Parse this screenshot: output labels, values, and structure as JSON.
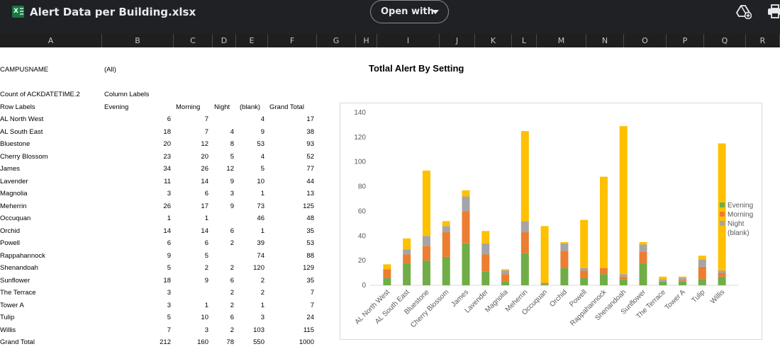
{
  "app": {
    "file_name": "Alert Data per Building.xlsx",
    "open_with_label": "Open with",
    "icons": [
      "spreadsheet-file-icon",
      "chevron-down-icon",
      "add-to-drive-icon",
      "print-icon"
    ]
  },
  "columns": [
    "A",
    "B",
    "C",
    "D",
    "E",
    "F",
    "G",
    "H",
    "I",
    "J",
    "K",
    "L",
    "M",
    "N",
    "O",
    "P",
    "Q",
    "R"
  ],
  "pivot": {
    "filter_label": "CAMPUSNAME",
    "filter_value": "(All)",
    "measure_label": "Count of ACKDATETIME.2",
    "column_labels": "Column Labels",
    "row_labels": "Row Labels",
    "headers": [
      "Evening",
      "Morning",
      "Night",
      "(blank)",
      "Grand Total"
    ],
    "rows": [
      {
        "name": "AL North West",
        "vals": [
          "6",
          "7",
          "",
          "4",
          "17"
        ]
      },
      {
        "name": "AL South East",
        "vals": [
          "18",
          "7",
          "4",
          "9",
          "38"
        ]
      },
      {
        "name": "Bluestone",
        "vals": [
          "20",
          "12",
          "8",
          "53",
          "93"
        ]
      },
      {
        "name": "Cherry Blossom",
        "vals": [
          "23",
          "20",
          "5",
          "4",
          "52"
        ]
      },
      {
        "name": "James",
        "vals": [
          "34",
          "26",
          "12",
          "5",
          "77"
        ]
      },
      {
        "name": "Lavender",
        "vals": [
          "11",
          "14",
          "9",
          "10",
          "44"
        ]
      },
      {
        "name": "Magnolia",
        "vals": [
          "3",
          "6",
          "3",
          "1",
          "13"
        ]
      },
      {
        "name": "Meherrin",
        "vals": [
          "26",
          "17",
          "9",
          "73",
          "125"
        ]
      },
      {
        "name": "Occuquan",
        "vals": [
          "1",
          "1",
          "",
          "46",
          "48"
        ]
      },
      {
        "name": "Orchid",
        "vals": [
          "14",
          "14",
          "6",
          "1",
          "35"
        ]
      },
      {
        "name": "Powell",
        "vals": [
          "6",
          "6",
          "2",
          "39",
          "53"
        ]
      },
      {
        "name": "Rappahannock",
        "vals": [
          "9",
          "5",
          "",
          "74",
          "88"
        ]
      },
      {
        "name": "Shenandoah",
        "vals": [
          "5",
          "2",
          "2",
          "120",
          "129"
        ]
      },
      {
        "name": "Sunflower",
        "vals": [
          "18",
          "9",
          "6",
          "2",
          "35"
        ]
      },
      {
        "name": "The Terrace",
        "vals": [
          "3",
          "",
          "2",
          "2",
          "7"
        ]
      },
      {
        "name": "Tower A",
        "vals": [
          "3",
          "1",
          "2",
          "1",
          "7"
        ]
      },
      {
        "name": "Tulip",
        "vals": [
          "5",
          "10",
          "6",
          "3",
          "24"
        ]
      },
      {
        "name": "Willis",
        "vals": [
          "7",
          "3",
          "2",
          "103",
          "115"
        ]
      },
      {
        "name": "Grand Total",
        "vals": [
          "212",
          "160",
          "78",
          "550",
          "1000"
        ]
      }
    ]
  },
  "chart_data": {
    "type": "bar",
    "stacked": true,
    "title": "Totlal Alert By Setting",
    "categories": [
      "AL North West",
      "AL South East",
      "Bluestone",
      "Cherry Blossom",
      "James",
      "Lavender",
      "Magnolia",
      "Meherrin",
      "Occuquan",
      "Orchid",
      "Powell",
      "Rappahannock",
      "Shenandoah",
      "Sunflower",
      "The Terrace",
      "Tower A",
      "Tulip",
      "Willis"
    ],
    "series": [
      {
        "name": "Evening",
        "color": "#70ad47",
        "values": [
          6,
          18,
          20,
          23,
          34,
          11,
          3,
          26,
          1,
          14,
          6,
          9,
          5,
          18,
          3,
          3,
          5,
          7
        ]
      },
      {
        "name": "Morning",
        "color": "#ed7d31",
        "values": [
          7,
          7,
          12,
          20,
          26,
          14,
          6,
          17,
          1,
          14,
          6,
          5,
          2,
          9,
          0,
          1,
          10,
          3
        ]
      },
      {
        "name": "Night",
        "color": "#a5a5a5",
        "values": [
          0,
          4,
          8,
          5,
          12,
          9,
          3,
          9,
          0,
          6,
          2,
          0,
          2,
          6,
          2,
          2,
          6,
          2
        ]
      },
      {
        "name": "(blank)",
        "color": "#ffc000",
        "values": [
          4,
          9,
          53,
          4,
          5,
          10,
          1,
          73,
          46,
          1,
          39,
          74,
          120,
          2,
          2,
          1,
          3,
          103
        ]
      }
    ],
    "ylim": [
      0,
      140
    ],
    "yticks": [
      0,
      20,
      40,
      60,
      80,
      100,
      120,
      140
    ],
    "legend": "right",
    "grid": false
  }
}
